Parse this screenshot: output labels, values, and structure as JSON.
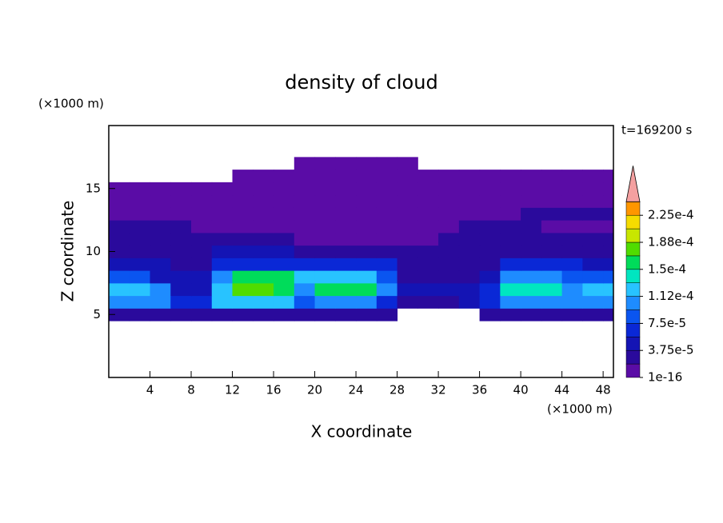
{
  "chart_data": {
    "type": "contour",
    "title": "density of cloud",
    "x_label": "X coordinate",
    "y_label": "Z coordinate",
    "x_unit": "(×1000 m)",
    "y_unit": "(×1000 m)",
    "annotation": "t=169200 s",
    "xlim": [
      0,
      49
    ],
    "ylim": [
      0,
      20
    ],
    "xticks": [
      4,
      8,
      12,
      16,
      20,
      24,
      28,
      32,
      36,
      40,
      44,
      48
    ],
    "yticks": [
      5,
      10,
      15
    ],
    "x": [
      1,
      3,
      5,
      7,
      9,
      11,
      13,
      15,
      17,
      19,
      21,
      23,
      25,
      27,
      29,
      31,
      33,
      35,
      37,
      39,
      41,
      43,
      45,
      47,
      49
    ],
    "y": [
      5,
      6,
      7,
      8,
      9,
      10,
      11,
      12,
      13,
      14,
      15,
      16,
      17
    ],
    "z": [
      [
        2.5e-05,
        2.5e-05,
        2.5e-05,
        2.5e-05,
        2.5e-05,
        2.5e-05,
        2.5e-05,
        2.5e-05,
        2.5e-05,
        2.5e-05,
        2.5e-05,
        2.5e-05,
        2.5e-05,
        2.5e-05,
        null,
        null,
        null,
        null,
        2.5e-05,
        2.5e-05,
        2.5e-05,
        2.5e-05,
        2.5e-05,
        2.5e-05,
        2.5e-05
      ],
      [
        0.00011,
        0.00011,
        0.00011,
        6e-05,
        6e-05,
        0.00012,
        0.00012,
        0.00012,
        0.00012,
        9e-05,
        0.00011,
        0.00011,
        0.00011,
        7e-05,
        2.5e-05,
        2.5e-05,
        2.5e-05,
        4e-05,
        7e-05,
        0.00011,
        0.00011,
        0.00011,
        0.00011,
        0.0001,
        0.0001
      ],
      [
        0.00013,
        0.00013,
        0.0001,
        4e-05,
        4e-05,
        0.00013,
        0.00017,
        0.00017,
        0.00015,
        0.00011,
        0.00015,
        0.00015,
        0.00015,
        0.00011,
        4e-05,
        4e-05,
        4e-05,
        4e-05,
        6e-05,
        0.00014,
        0.00014,
        0.00014,
        0.00011,
        0.00012,
        0.00012
      ],
      [
        9e-05,
        9e-05,
        4e-05,
        4e-05,
        4e-05,
        0.00011,
        0.00016,
        0.00016,
        0.00016,
        0.00013,
        0.00013,
        0.00012,
        0.00012,
        9e-05,
        3e-05,
        3e-05,
        3e-05,
        3e-05,
        5e-05,
        0.00011,
        0.00011,
        0.00011,
        8e-05,
        8e-05,
        9e-05
      ],
      [
        4.5e-05,
        4.5e-05,
        4.5e-05,
        3e-05,
        3e-05,
        7e-05,
        7e-05,
        7e-05,
        7e-05,
        6e-05,
        6e-05,
        6e-05,
        6e-05,
        6e-05,
        3e-05,
        3e-05,
        3e-05,
        3e-05,
        3e-05,
        6.5e-05,
        6.5e-05,
        6.5e-05,
        6.5e-05,
        5e-05,
        5e-05
      ],
      [
        3e-05,
        3e-05,
        3e-05,
        3e-05,
        3e-05,
        4.5e-05,
        4.5e-05,
        4.5e-05,
        4.5e-05,
        3e-05,
        3e-05,
        3e-05,
        3e-05,
        3e-05,
        2.5e-05,
        2.5e-05,
        2.5e-05,
        2.5e-05,
        2.5e-05,
        3e-05,
        3e-05,
        3e-05,
        3e-05,
        3e-05,
        3e-05
      ],
      [
        2.5e-05,
        2.5e-05,
        2.5e-05,
        2.5e-05,
        2.5e-05,
        2.5e-05,
        2.5e-05,
        2.5e-05,
        2.5e-05,
        1e-05,
        1e-05,
        1e-05,
        1e-05,
        1e-05,
        1e-05,
        1e-05,
        2.5e-05,
        2.5e-05,
        2.5e-05,
        2.5e-05,
        2.5e-05,
        2.5e-05,
        2.5e-05,
        2.5e-05,
        2.5e-05
      ],
      [
        2.5e-05,
        2.5e-05,
        2.5e-05,
        2.5e-05,
        1e-05,
        1e-05,
        1e-05,
        1e-05,
        1e-05,
        1e-05,
        1e-05,
        1e-05,
        1e-05,
        1e-05,
        1e-05,
        1e-05,
        1e-05,
        2.5e-05,
        2.5e-05,
        2.5e-05,
        2.5e-05,
        1e-05,
        1e-05,
        1e-05,
        1e-05
      ],
      [
        1e-05,
        1e-05,
        1e-05,
        1e-05,
        1e-05,
        1e-05,
        1e-05,
        1e-05,
        1e-05,
        1e-05,
        1e-05,
        1e-05,
        1e-05,
        1e-05,
        1e-05,
        1e-05,
        1e-05,
        1e-05,
        1e-05,
        1e-05,
        2.5e-05,
        2.5e-05,
        2.5e-05,
        2.5e-05,
        2.5e-05
      ],
      [
        1e-05,
        1e-05,
        1e-05,
        1e-05,
        1e-05,
        1e-05,
        1e-05,
        1e-05,
        1e-05,
        1e-05,
        1e-05,
        1e-05,
        1e-05,
        1e-05,
        1e-05,
        1e-05,
        1e-05,
        1e-05,
        1e-05,
        1e-05,
        1e-05,
        1e-05,
        1e-05,
        1e-05,
        1e-05
      ],
      [
        1e-05,
        1e-05,
        1e-05,
        1e-05,
        1e-05,
        1e-05,
        1e-05,
        1e-05,
        1e-05,
        1e-05,
        1e-05,
        1e-05,
        1e-05,
        1e-05,
        1e-05,
        1e-05,
        1e-05,
        1e-05,
        1e-05,
        1e-05,
        1e-05,
        1e-05,
        1e-05,
        1e-05,
        1e-05
      ],
      [
        null,
        null,
        null,
        null,
        null,
        null,
        1e-05,
        1e-05,
        1e-05,
        1e-05,
        1e-05,
        1e-05,
        1e-05,
        1e-05,
        1e-05,
        1e-05,
        1e-05,
        1e-05,
        1e-05,
        1e-05,
        1e-05,
        1e-05,
        1e-05,
        1e-05,
        1e-05
      ],
      [
        null,
        null,
        null,
        null,
        null,
        null,
        null,
        null,
        null,
        1e-05,
        1e-05,
        1e-05,
        1e-05,
        1e-05,
        1e-05,
        null,
        null,
        null,
        null,
        null,
        null,
        null,
        null,
        null,
        null
      ]
    ],
    "levels": [
      1e-16,
      1.875e-05,
      3.75e-05,
      5.625e-05,
      7.5e-05,
      9.375e-05,
      0.0001125,
      0.00013125,
      0.00015,
      0.00016875,
      0.0001875,
      0.00020625,
      0.000225,
      0.00024375
    ],
    "colors": [
      "#5a0ca6",
      "#2a0a9c",
      "#1414b4",
      "#0a28d6",
      "#0a55f0",
      "#1e8cff",
      "#28c3ff",
      "#00e6c0",
      "#00dc5a",
      "#50dc00",
      "#c8e600",
      "#f5dc00",
      "#ff9600"
    ],
    "extend_color": "#f4a0a0",
    "colorbar_ticks": [
      {
        "value": 1e-16,
        "label": "1e-16"
      },
      {
        "value": 3.75e-05,
        "label": "3.75e-5"
      },
      {
        "value": 7.5e-05,
        "label": "7.5e-5"
      },
      {
        "value": 0.0001125,
        "label": "1.12e-4"
      },
      {
        "value": 0.00015,
        "label": "1.5e-4"
      },
      {
        "value": 0.0001875,
        "label": "1.88e-4"
      },
      {
        "value": 0.000225,
        "label": "2.25e-4"
      }
    ]
  }
}
